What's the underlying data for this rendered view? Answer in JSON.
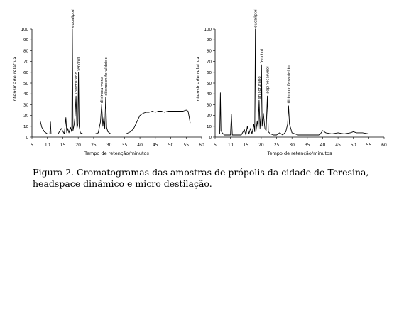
{
  "caption": "Figura 2. Cromatogramas das amostras de própolis da cidade de Teresina, headspace dinâmico e micro destilação.",
  "chart_data": [
    {
      "type": "line",
      "xlabel": "Tempo de retenção/minutos",
      "ylabel": "Intensidade relativa",
      "xlim": [
        5,
        60
      ],
      "ylim": [
        0,
        100
      ],
      "xticks": [
        5,
        10,
        15,
        20,
        25,
        30,
        35,
        40,
        45,
        50,
        55,
        60
      ],
      "yticks": [
        0,
        10,
        20,
        30,
        40,
        50,
        60,
        70,
        80,
        90,
        100
      ],
      "annotations": [
        {
          "label": "eucaliptol",
          "x": 18.1,
          "y": 100
        },
        {
          "label": "fenchol",
          "x": 20.1,
          "y": 60
        },
        {
          "label": "shisofurano",
          "x": 19.3,
          "y": 38
        },
        {
          "label": "diidrocarvona",
          "x": 27.6,
          "y": 30
        },
        {
          "label": "diidroconiferaldeído",
          "x": 28.9,
          "y": 37
        }
      ],
      "series": [
        {
          "x": [
            7.6,
            8.2,
            9.0,
            10.0,
            10.8,
            11.0,
            11.2,
            12.0,
            13.5,
            14.5,
            15.5,
            16.0,
            16.3,
            16.6,
            17.0,
            17.5,
            17.9,
            18.1,
            18.3,
            18.7,
            19.0,
            19.3,
            19.6,
            19.9,
            20.1,
            20.3,
            20.7,
            21.5,
            22.5,
            24.0,
            25.5,
            26.5,
            27.2,
            27.6,
            28.0,
            28.3,
            28.6,
            28.9,
            29.2,
            29.6,
            30.5,
            32.0,
            34.0,
            35.5,
            37.0,
            38.0,
            39.0,
            40.0,
            41.0,
            42.0,
            43.0,
            44.0,
            45.0,
            46.0,
            47.0,
            48.0,
            49.0,
            50.0,
            51.0,
            52.0,
            53.0,
            54.0,
            55.0,
            55.6,
            56.0,
            56.3
          ],
          "y": [
            16,
            9,
            5,
            3,
            3,
            14,
            3,
            3,
            3,
            8,
            3,
            18,
            4,
            8,
            4,
            9,
            5,
            100,
            6,
            12,
            20,
            38,
            8,
            12,
            60,
            10,
            4,
            3,
            3,
            3,
            3,
            4,
            14,
            30,
            10,
            18,
            8,
            37,
            9,
            5,
            3,
            3,
            3,
            3,
            5,
            8,
            14,
            20,
            22,
            23,
            23,
            24,
            23,
            24,
            24,
            23,
            24,
            24,
            24,
            24,
            24,
            24,
            25,
            24,
            18,
            13
          ]
        }
      ]
    },
    {
      "type": "line",
      "xlabel": "Tempo de retenção/minutos",
      "ylabel": "Intensidade relativa",
      "xlim": [
        5,
        60
      ],
      "ylim": [
        0,
        100
      ],
      "xticks": [
        5,
        10,
        15,
        20,
        25,
        30,
        35,
        40,
        45,
        50,
        55,
        60
      ],
      "yticks": [
        0,
        10,
        20,
        30,
        40,
        50,
        60,
        70,
        80,
        90,
        100
      ],
      "annotations": [
        {
          "label": "eucaliptol",
          "x": 18.1,
          "y": 100
        },
        {
          "label": "fenchol",
          "x": 20.1,
          "y": 67
        },
        {
          "label": "shisofurano",
          "x": 19.3,
          "y": 34
        },
        {
          "label": "isopinocarveol",
          "x": 22.0,
          "y": 38
        },
        {
          "label": "diidroconiferaldeído",
          "x": 28.9,
          "y": 29
        }
      ],
      "series": [
        {
          "x": [
            6.5,
            6.7,
            6.9,
            7.3,
            8.0,
            9.0,
            10.0,
            10.3,
            10.6,
            12.0,
            13.5,
            14.5,
            15.0,
            15.5,
            16.0,
            16.5,
            17.0,
            17.6,
            17.9,
            18.1,
            18.3,
            18.7,
            19.0,
            19.3,
            19.6,
            19.9,
            20.1,
            20.3,
            20.7,
            21.2,
            21.6,
            22.0,
            22.3,
            23.0,
            24.0,
            25.0,
            26.0,
            27.0,
            28.0,
            28.6,
            28.9,
            29.2,
            29.6,
            30.0,
            31.0,
            32.0,
            33.0,
            35.0,
            37.0,
            39.0,
            40.0,
            41.0,
            43.0,
            45.0,
            47.0,
            49.0,
            50.0,
            51.0,
            53.0,
            55.0,
            55.8
          ],
          "y": [
            3,
            41,
            6,
            4,
            2,
            2,
            2,
            21,
            2,
            2,
            2,
            7,
            2,
            10,
            3,
            8,
            3,
            12,
            5,
            100,
            6,
            15,
            8,
            34,
            8,
            20,
            67,
            10,
            22,
            8,
            6,
            38,
            5,
            3,
            2,
            2,
            4,
            2,
            5,
            12,
            29,
            12,
            8,
            4,
            3,
            2,
            2,
            2,
            2,
            2,
            6,
            4,
            3,
            4,
            3,
            4,
            5,
            4,
            4,
            3,
            3
          ]
        }
      ]
    }
  ]
}
